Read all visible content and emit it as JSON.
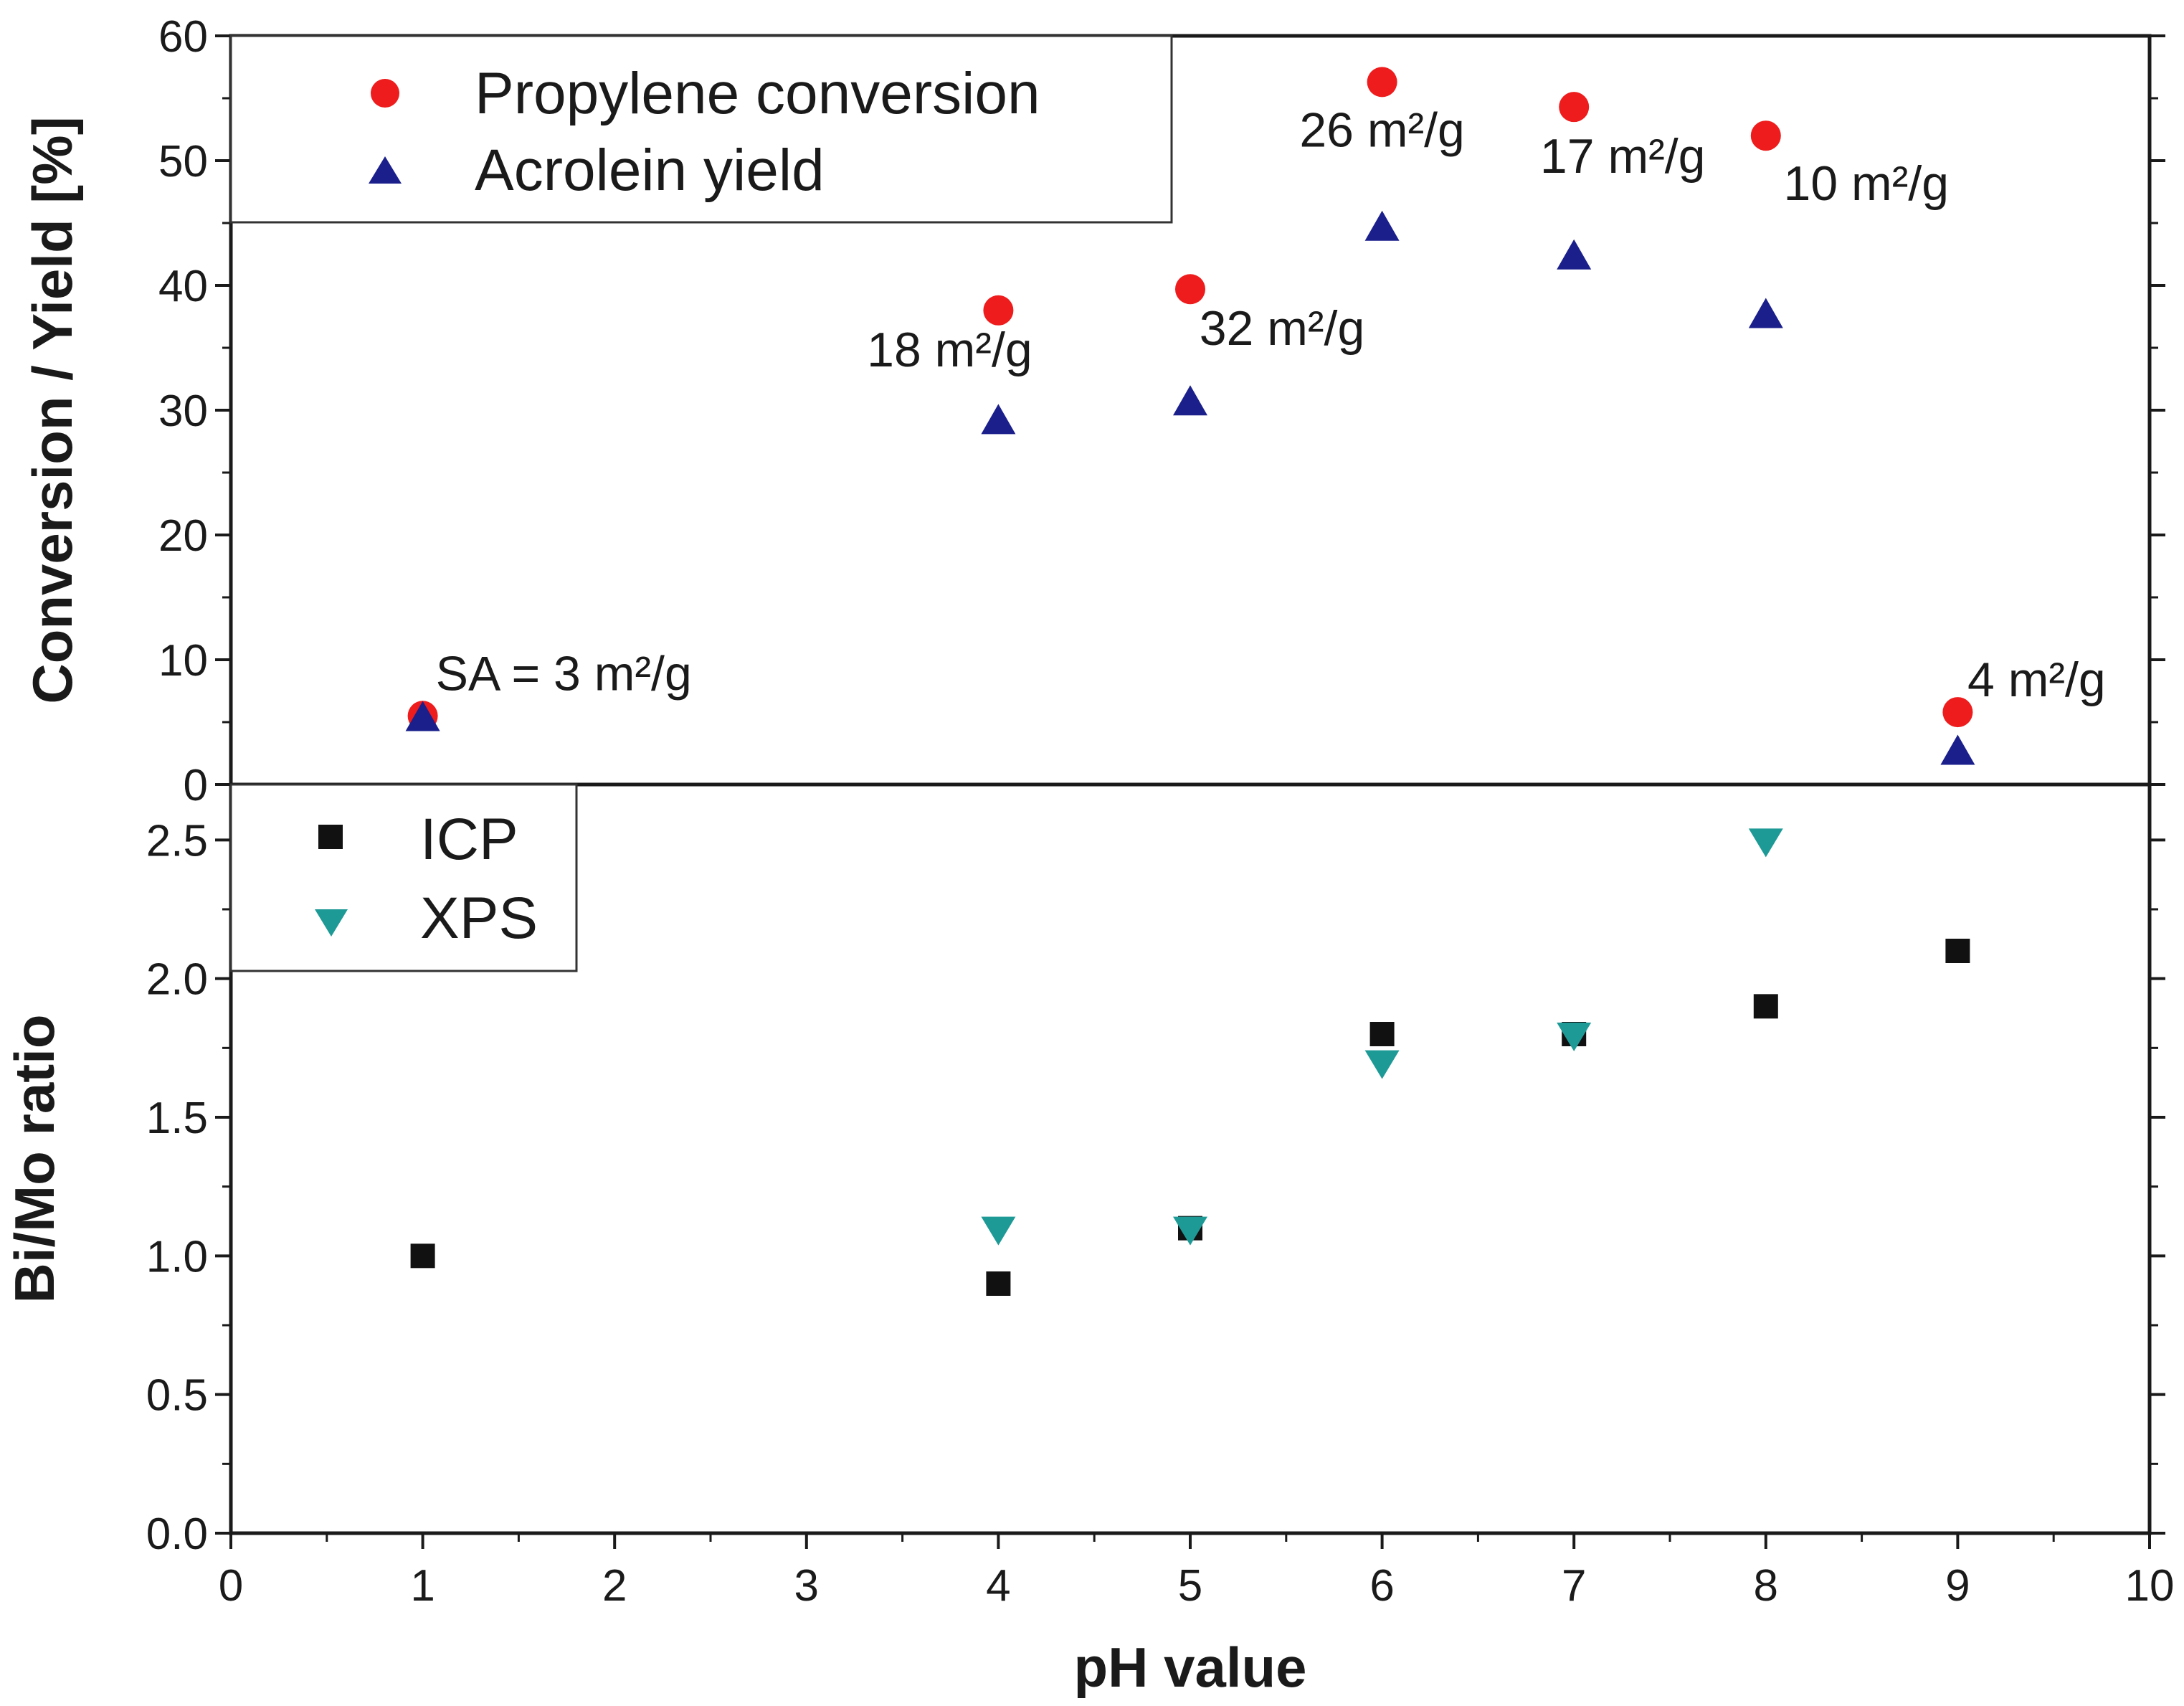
{
  "chart_data": [
    {
      "type": "scatter",
      "panel": "top",
      "xlabel": "pH value",
      "ylabel": "Conversion / Yield [%]",
      "xlim": [
        0,
        10
      ],
      "ylim": [
        0,
        60
      ],
      "xticks": [
        0,
        1,
        2,
        3,
        4,
        5,
        6,
        7,
        8,
        9,
        10
      ],
      "yticks": [
        0,
        10,
        20,
        30,
        40,
        50,
        60
      ],
      "legend_position": "top-left",
      "series": [
        {
          "name": "Propylene conversion",
          "marker": "circle",
          "color": "#ee1c1c",
          "points": [
            [
              1,
              5.5
            ],
            [
              4,
              38
            ],
            [
              5,
              39.7
            ],
            [
              6,
              56.3
            ],
            [
              7,
              54.3
            ],
            [
              8,
              52
            ],
            [
              9,
              5.8
            ]
          ]
        },
        {
          "name": "Acrolein yield",
          "marker": "triangle-up",
          "color": "#1a1f8c",
          "points": [
            [
              1,
              5.2
            ],
            [
              4,
              29
            ],
            [
              5,
              30.5
            ],
            [
              6,
              44.5
            ],
            [
              7,
              42.2
            ],
            [
              8,
              37.5
            ],
            [
              9,
              2.5
            ]
          ]
        }
      ],
      "annotations": [
        {
          "text": "SA = 3 m²/g",
          "x": 1,
          "y": 5.5
        },
        {
          "text": "18 m²/g",
          "x": 4,
          "y": 38
        },
        {
          "text": "32 m²/g",
          "x": 5,
          "y": 39.7
        },
        {
          "text": "26 m²/g",
          "x": 6,
          "y": 56.3
        },
        {
          "text": "17 m²/g",
          "x": 7,
          "y": 54.3
        },
        {
          "text": "10 m²/g",
          "x": 8,
          "y": 52
        },
        {
          "text": "4 m²/g",
          "x": 9,
          "y": 5.8
        }
      ]
    },
    {
      "type": "scatter",
      "panel": "bottom",
      "xlabel": "pH value",
      "ylabel": "Bi/Mo ratio",
      "xlim": [
        0,
        10
      ],
      "ylim": [
        0,
        2.7
      ],
      "xticks": [
        0,
        1,
        2,
        3,
        4,
        5,
        6,
        7,
        8,
        9,
        10
      ],
      "yticks": [
        0.0,
        0.5,
        1.0,
        1.5,
        2.0,
        2.5
      ],
      "ytick_labels": [
        "0.0",
        "0.5",
        "1.0",
        "1.5",
        "2.0",
        "2.5"
      ],
      "legend_position": "top-left",
      "series": [
        {
          "name": "ICP",
          "marker": "square",
          "color": "#111111",
          "points": [
            [
              1,
              1.0
            ],
            [
              4,
              0.9
            ],
            [
              5,
              1.1
            ],
            [
              6,
              1.8
            ],
            [
              7,
              1.8
            ],
            [
              8,
              1.9
            ],
            [
              9,
              2.1
            ]
          ]
        },
        {
          "name": "XPS",
          "marker": "triangle-down",
          "color": "#1e9a96",
          "points": [
            [
              4,
              1.1
            ],
            [
              5,
              1.1
            ],
            [
              6,
              1.7
            ],
            [
              7,
              1.8
            ],
            [
              8,
              2.5
            ]
          ]
        }
      ]
    }
  ]
}
